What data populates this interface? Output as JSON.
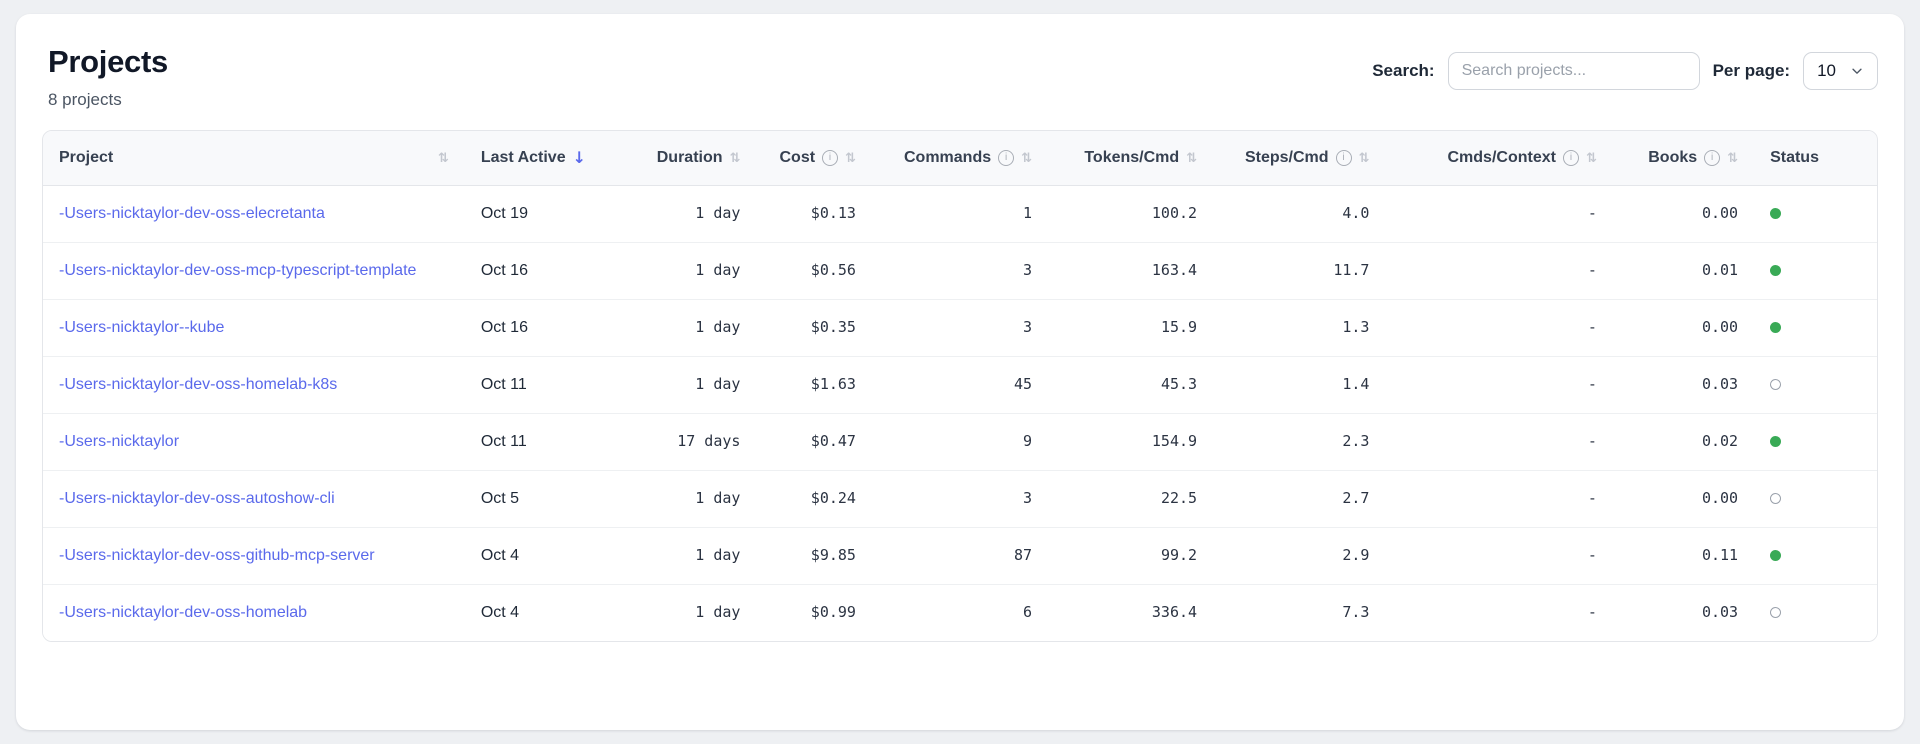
{
  "page": {
    "title": "Projects",
    "subtitle": "8 projects"
  },
  "controls": {
    "search_label": "Search:",
    "search_placeholder": "Search projects...",
    "per_page_label": "Per page:",
    "per_page_value": "10"
  },
  "colors": {
    "link": "#5a69eb",
    "status_active": "#39aa56",
    "status_inactive": "#9aa1ab",
    "sort_active": "#5a69eb"
  },
  "table": {
    "columns": [
      {
        "label": "Project",
        "align": "left",
        "sortable": true
      },
      {
        "label": "Last Active",
        "align": "left",
        "sorted": "desc"
      },
      {
        "label": "Duration",
        "align": "right",
        "sortable": true
      },
      {
        "label": "Cost",
        "align": "right",
        "info": true,
        "sortable": true
      },
      {
        "label": "Commands",
        "align": "right",
        "info": true,
        "sortable": true
      },
      {
        "label": "Tokens/Cmd",
        "align": "right",
        "sortable": true
      },
      {
        "label": "Steps/Cmd",
        "align": "right",
        "info": true,
        "sortable": true
      },
      {
        "label": "Cmds/Context",
        "align": "right",
        "info": true,
        "sortable": true
      },
      {
        "label": "Books",
        "align": "right",
        "info": true,
        "sortable": true
      },
      {
        "label": "Status",
        "align": "left"
      }
    ],
    "rows": [
      {
        "project": "-Users-nicktaylor-dev-oss-elecretanta",
        "last_active": "Oct 19",
        "duration": "1 day",
        "cost": "$0.13",
        "commands": "1",
        "tokens_per_cmd": "100.2",
        "steps_per_cmd": "4.0",
        "cmds_per_context": "-",
        "books": "0.00",
        "status": "active"
      },
      {
        "project": "-Users-nicktaylor-dev-oss-mcp-typescript-template",
        "last_active": "Oct 16",
        "duration": "1 day",
        "cost": "$0.56",
        "commands": "3",
        "tokens_per_cmd": "163.4",
        "steps_per_cmd": "11.7",
        "cmds_per_context": "-",
        "books": "0.01",
        "status": "active"
      },
      {
        "project": "-Users-nicktaylor--kube",
        "last_active": "Oct 16",
        "duration": "1 day",
        "cost": "$0.35",
        "commands": "3",
        "tokens_per_cmd": "15.9",
        "steps_per_cmd": "1.3",
        "cmds_per_context": "-",
        "books": "0.00",
        "status": "active"
      },
      {
        "project": "-Users-nicktaylor-dev-oss-homelab-k8s",
        "last_active": "Oct 11",
        "duration": "1 day",
        "cost": "$1.63",
        "commands": "45",
        "tokens_per_cmd": "45.3",
        "steps_per_cmd": "1.4",
        "cmds_per_context": "-",
        "books": "0.03",
        "status": "inactive"
      },
      {
        "project": "-Users-nicktaylor",
        "last_active": "Oct 11",
        "duration": "17 days",
        "cost": "$0.47",
        "commands": "9",
        "tokens_per_cmd": "154.9",
        "steps_per_cmd": "2.3",
        "cmds_per_context": "-",
        "books": "0.02",
        "status": "active"
      },
      {
        "project": "-Users-nicktaylor-dev-oss-autoshow-cli",
        "last_active": "Oct 5",
        "duration": "1 day",
        "cost": "$0.24",
        "commands": "3",
        "tokens_per_cmd": "22.5",
        "steps_per_cmd": "2.7",
        "cmds_per_context": "-",
        "books": "0.00",
        "status": "inactive"
      },
      {
        "project": "-Users-nicktaylor-dev-oss-github-mcp-server",
        "last_active": "Oct 4",
        "duration": "1 day",
        "cost": "$9.85",
        "commands": "87",
        "tokens_per_cmd": "99.2",
        "steps_per_cmd": "2.9",
        "cmds_per_context": "-",
        "books": "0.11",
        "status": "active"
      },
      {
        "project": "-Users-nicktaylor-dev-oss-homelab",
        "last_active": "Oct 4",
        "duration": "1 day",
        "cost": "$0.99",
        "commands": "6",
        "tokens_per_cmd": "336.4",
        "steps_per_cmd": "7.3",
        "cmds_per_context": "-",
        "books": "0.03",
        "status": "inactive"
      }
    ]
  }
}
